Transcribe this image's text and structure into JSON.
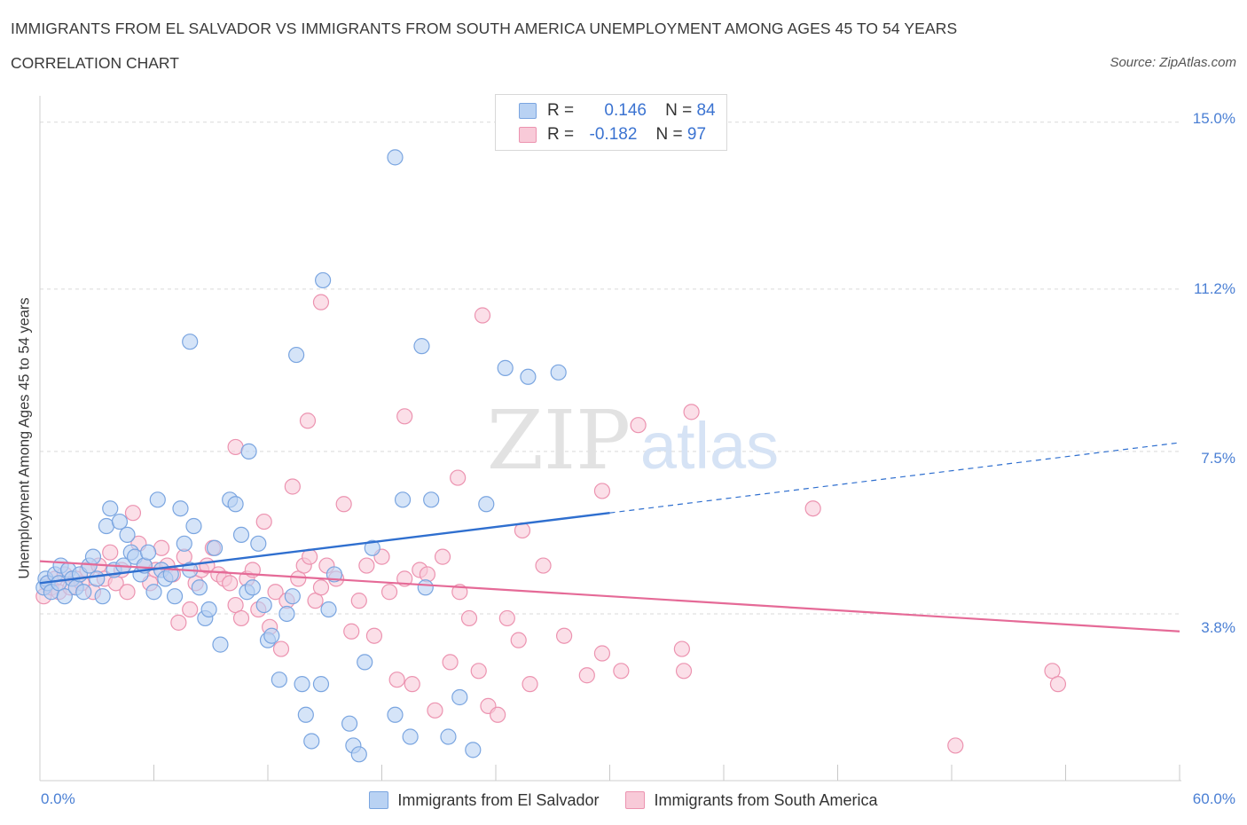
{
  "title": "IMMIGRANTS FROM EL SALVADOR VS IMMIGRANTS FROM SOUTH AMERICA UNEMPLOYMENT AMONG AGES 45 TO 54 YEARS",
  "subtitle": "CORRELATION CHART",
  "source": "Source: ZipAtlas.com",
  "watermark": {
    "zip": "ZIP",
    "atlas": "atlas"
  },
  "legend": {
    "r_label": "R =",
    "n_label": "N =",
    "series1": {
      "r": "0.146",
      "n": "84"
    },
    "series2": {
      "r": "-0.182",
      "n": "97"
    }
  },
  "colors": {
    "blue_fill": "#b9d2f3",
    "blue_stroke": "#7aa5e0",
    "blue_line": "#2f6fcf",
    "pink_fill": "#f8cad8",
    "pink_stroke": "#ec93b0",
    "pink_line": "#e56a97",
    "tick_text": "#4a7fd4",
    "grid": "#d9d9d9"
  },
  "chart_data": {
    "type": "scatter",
    "title": "IMMIGRANTS FROM EL SALVADOR VS IMMIGRANTS FROM SOUTH AMERICA UNEMPLOYMENT AMONG AGES 45 TO 54 YEARS",
    "xlabel": "",
    "ylabel": "Unemployment Among Ages 45 to 54 years",
    "xlim": [
      0,
      60
    ],
    "ylim": [
      0,
      15.4
    ],
    "x_tick_labels": [
      "0.0%",
      "60.0%"
    ],
    "y_ticks": [
      3.8,
      7.5,
      11.2,
      15.0
    ],
    "y_tick_labels": [
      "3.8%",
      "7.5%",
      "11.2%",
      "15.0%"
    ],
    "grid": true,
    "series": [
      {
        "name": "Immigrants from El Salvador",
        "r": 0.146,
        "n": 84,
        "trend": {
          "x0": 0,
          "y0": 4.5,
          "x1": 30,
          "y1": 6.1,
          "dashed_to_x": 60,
          "dashed_to_y": 7.7
        },
        "points": [
          [
            0.2,
            4.4
          ],
          [
            0.3,
            4.6
          ],
          [
            0.4,
            4.5
          ],
          [
            0.6,
            4.3
          ],
          [
            0.8,
            4.7
          ],
          [
            1.0,
            4.5
          ],
          [
            1.1,
            4.9
          ],
          [
            1.3,
            4.2
          ],
          [
            1.5,
            4.8
          ],
          [
            1.7,
            4.6
          ],
          [
            1.9,
            4.4
          ],
          [
            2.1,
            4.7
          ],
          [
            2.3,
            4.3
          ],
          [
            2.6,
            4.9
          ],
          [
            2.8,
            5.1
          ],
          [
            3.0,
            4.6
          ],
          [
            3.3,
            4.2
          ],
          [
            3.5,
            5.8
          ],
          [
            3.7,
            6.2
          ],
          [
            3.9,
            4.8
          ],
          [
            4.2,
            5.9
          ],
          [
            4.4,
            4.9
          ],
          [
            4.6,
            5.6
          ],
          [
            4.8,
            5.2
          ],
          [
            5.0,
            5.1
          ],
          [
            5.3,
            4.7
          ],
          [
            5.5,
            4.9
          ],
          [
            5.7,
            5.2
          ],
          [
            6.0,
            4.3
          ],
          [
            6.2,
            6.4
          ],
          [
            6.4,
            4.8
          ],
          [
            6.6,
            4.6
          ],
          [
            6.9,
            4.7
          ],
          [
            7.1,
            4.2
          ],
          [
            7.4,
            6.2
          ],
          [
            7.6,
            5.4
          ],
          [
            7.9,
            4.8
          ],
          [
            8.1,
            5.8
          ],
          [
            8.4,
            4.4
          ],
          [
            8.7,
            3.7
          ],
          [
            8.9,
            3.9
          ],
          [
            9.2,
            5.3
          ],
          [
            9.5,
            3.1
          ],
          [
            10.0,
            6.4
          ],
          [
            10.3,
            6.3
          ],
          [
            10.6,
            5.6
          ],
          [
            10.9,
            4.3
          ],
          [
            11.2,
            4.4
          ],
          [
            11.5,
            5.4
          ],
          [
            11.8,
            4.0
          ],
          [
            12.0,
            3.2
          ],
          [
            12.2,
            3.3
          ],
          [
            12.6,
            2.3
          ],
          [
            13.0,
            3.8
          ],
          [
            13.3,
            4.2
          ],
          [
            13.8,
            2.2
          ],
          [
            14.0,
            1.5
          ],
          [
            14.3,
            0.9
          ],
          [
            14.8,
            2.2
          ],
          [
            15.2,
            3.9
          ],
          [
            15.5,
            4.7
          ],
          [
            16.3,
            1.3
          ],
          [
            16.5,
            0.8
          ],
          [
            16.8,
            0.6
          ],
          [
            17.1,
            2.7
          ],
          [
            17.5,
            5.3
          ],
          [
            18.7,
            1.5
          ],
          [
            19.1,
            6.4
          ],
          [
            19.5,
            1.0
          ],
          [
            20.3,
            4.4
          ],
          [
            20.6,
            6.4
          ],
          [
            21.5,
            1.0
          ],
          [
            22.1,
            1.9
          ],
          [
            22.8,
            0.7
          ],
          [
            14.9,
            11.4
          ],
          [
            13.5,
            9.7
          ],
          [
            18.7,
            14.2
          ],
          [
            20.1,
            9.9
          ],
          [
            23.5,
            6.3
          ],
          [
            24.5,
            9.4
          ],
          [
            25.7,
            9.2
          ],
          [
            27.3,
            9.3
          ],
          [
            7.9,
            10.0
          ],
          [
            11.0,
            7.5
          ]
        ]
      },
      {
        "name": "Immigrants from South America",
        "r": -0.182,
        "n": 97,
        "trend": {
          "x0": 0,
          "y0": 5.0,
          "x1": 60,
          "y1": 3.4
        },
        "points": [
          [
            0.2,
            4.2
          ],
          [
            0.4,
            4.5
          ],
          [
            0.6,
            4.4
          ],
          [
            0.8,
            4.6
          ],
          [
            1.0,
            4.3
          ],
          [
            1.3,
            4.7
          ],
          [
            1.6,
            4.4
          ],
          [
            1.9,
            4.6
          ],
          [
            2.2,
            4.5
          ],
          [
            2.5,
            4.8
          ],
          [
            2.8,
            4.3
          ],
          [
            3.1,
            4.9
          ],
          [
            3.4,
            4.6
          ],
          [
            3.7,
            5.2
          ],
          [
            4.0,
            4.5
          ],
          [
            4.3,
            4.8
          ],
          [
            4.6,
            4.3
          ],
          [
            4.9,
            6.1
          ],
          [
            5.2,
            5.4
          ],
          [
            5.5,
            4.9
          ],
          [
            5.8,
            4.5
          ],
          [
            6.1,
            4.8
          ],
          [
            6.4,
            5.3
          ],
          [
            6.7,
            4.9
          ],
          [
            7.0,
            4.7
          ],
          [
            7.3,
            3.6
          ],
          [
            7.6,
            5.1
          ],
          [
            7.9,
            3.9
          ],
          [
            8.2,
            4.5
          ],
          [
            8.5,
            4.8
          ],
          [
            8.8,
            4.9
          ],
          [
            9.1,
            5.3
          ],
          [
            9.4,
            4.7
          ],
          [
            9.7,
            4.6
          ],
          [
            10.0,
            4.5
          ],
          [
            10.3,
            4.0
          ],
          [
            10.6,
            3.7
          ],
          [
            10.9,
            4.6
          ],
          [
            11.2,
            4.8
          ],
          [
            11.5,
            3.9
          ],
          [
            11.8,
            5.9
          ],
          [
            12.1,
            3.5
          ],
          [
            12.4,
            4.3
          ],
          [
            12.7,
            3.0
          ],
          [
            13.0,
            4.1
          ],
          [
            13.3,
            6.7
          ],
          [
            13.6,
            4.6
          ],
          [
            13.9,
            4.9
          ],
          [
            14.2,
            5.1
          ],
          [
            14.5,
            4.1
          ],
          [
            14.8,
            4.4
          ],
          [
            15.1,
            4.9
          ],
          [
            15.6,
            4.6
          ],
          [
            16.0,
            6.3
          ],
          [
            16.4,
            3.4
          ],
          [
            16.8,
            4.1
          ],
          [
            17.2,
            4.9
          ],
          [
            17.6,
            3.3
          ],
          [
            18.0,
            5.1
          ],
          [
            18.4,
            4.3
          ],
          [
            18.8,
            2.3
          ],
          [
            19.2,
            4.6
          ],
          [
            19.6,
            2.2
          ],
          [
            20.0,
            4.8
          ],
          [
            20.4,
            4.7
          ],
          [
            20.8,
            1.6
          ],
          [
            21.2,
            5.1
          ],
          [
            21.6,
            2.7
          ],
          [
            22.1,
            4.3
          ],
          [
            22.6,
            3.7
          ],
          [
            23.1,
            2.5
          ],
          [
            23.6,
            1.7
          ],
          [
            24.1,
            1.5
          ],
          [
            24.6,
            3.7
          ],
          [
            25.2,
            3.2
          ],
          [
            25.8,
            2.2
          ],
          [
            26.5,
            4.9
          ],
          [
            27.6,
            3.3
          ],
          [
            28.8,
            2.4
          ],
          [
            29.6,
            2.9
          ],
          [
            30.6,
            2.5
          ],
          [
            14.8,
            10.9
          ],
          [
            23.3,
            10.6
          ],
          [
            14.1,
            8.2
          ],
          [
            19.2,
            8.3
          ],
          [
            25.4,
            5.7
          ],
          [
            10.3,
            7.6
          ],
          [
            22.0,
            6.9
          ],
          [
            29.6,
            6.6
          ],
          [
            31.5,
            8.1
          ],
          [
            34.3,
            8.4
          ],
          [
            40.7,
            6.2
          ],
          [
            48.2,
            0.8
          ],
          [
            53.3,
            2.5
          ],
          [
            53.6,
            2.2
          ],
          [
            33.8,
            3.0
          ],
          [
            33.9,
            2.5
          ]
        ]
      }
    ]
  }
}
